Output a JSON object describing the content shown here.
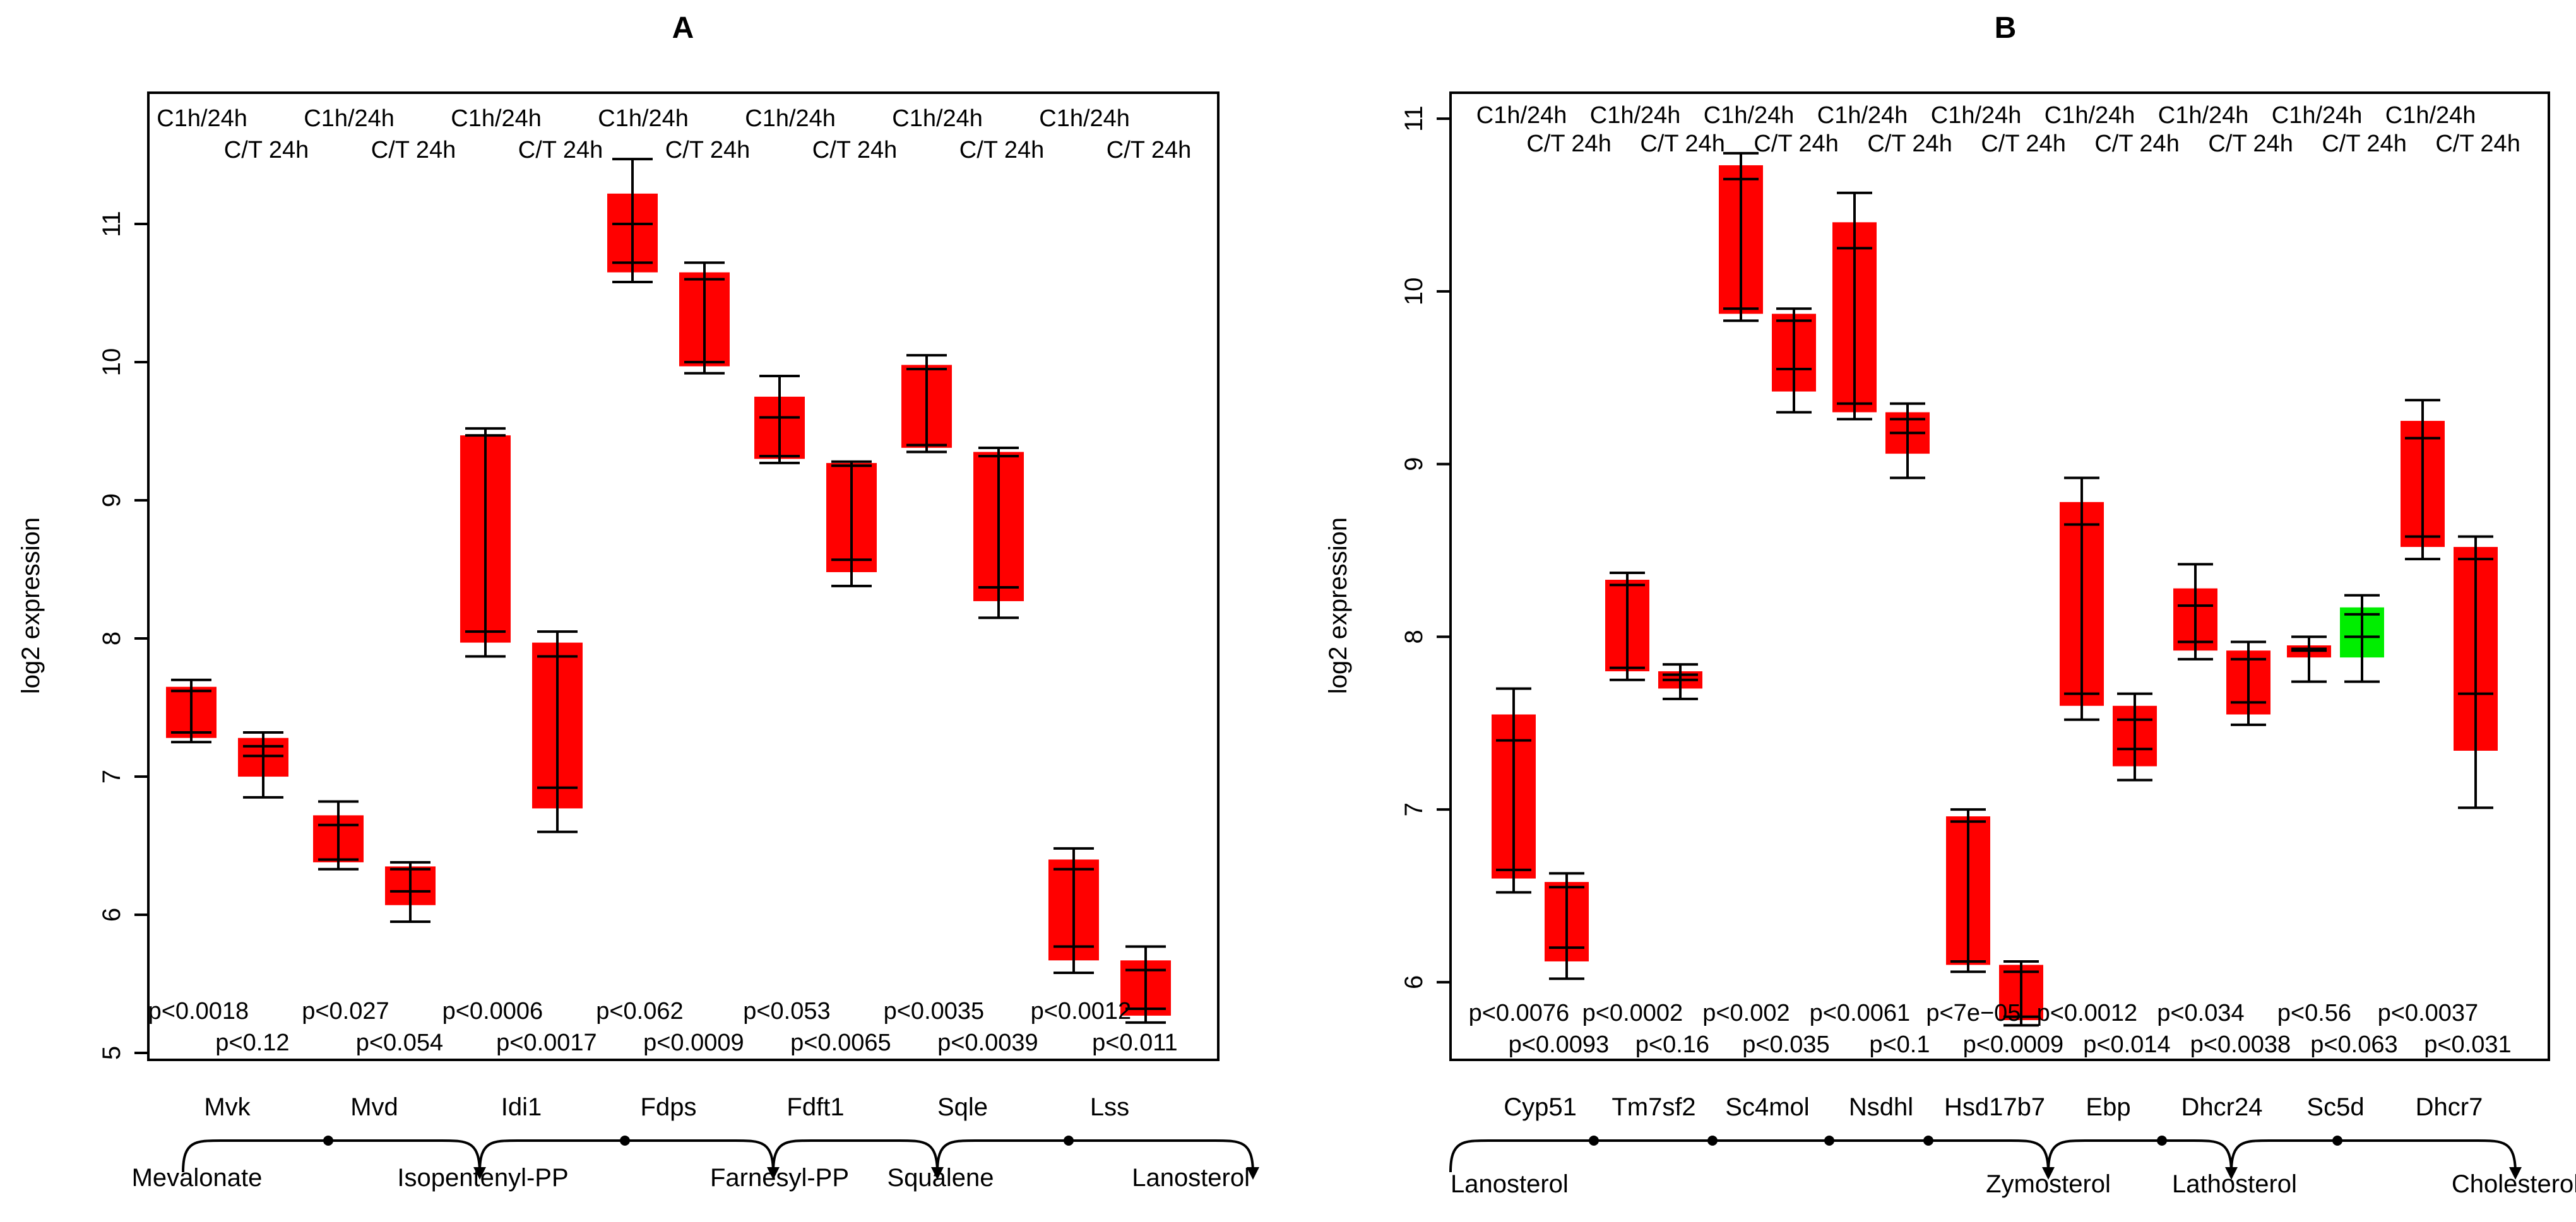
{
  "figure": {
    "panel_labels": [
      "A",
      "B"
    ],
    "ylabel": "log2 expression",
    "colors": {
      "increase": "#ff0000",
      "decrease": "#00ee00",
      "axis": "#000000"
    }
  },
  "chart_data": [
    {
      "type": "box",
      "panel": "A",
      "title": "A",
      "ylabel": "log2 expression",
      "ylim": [
        4.95,
        11.95
      ],
      "yticks": [
        5,
        6,
        7,
        8,
        9,
        10,
        11
      ],
      "group_labels": {
        "first": "C1h/24h",
        "second": "C/T 24h"
      },
      "genes": [
        {
          "gene": "Mvk",
          "p1": "p<0.0018",
          "p2": "p<0.12",
          "boxes": [
            {
              "color": "red",
              "whisker_low": 7.25,
              "q1": 7.28,
              "median": 7.32,
              "q3": 7.65,
              "whisker_high": 7.7,
              "mid": 7.62
            },
            {
              "color": "red",
              "whisker_low": 6.85,
              "q1": 7.0,
              "median": 7.15,
              "q3": 7.28,
              "whisker_high": 7.32,
              "mid": 7.22
            }
          ]
        },
        {
          "gene": "Mvd",
          "p1": "p<0.027",
          "p2": "p<0.054",
          "boxes": [
            {
              "color": "red",
              "whisker_low": 6.33,
              "q1": 6.38,
              "median": 6.4,
              "q3": 6.72,
              "whisker_high": 6.82,
              "mid": 6.65
            },
            {
              "color": "red",
              "whisker_low": 5.95,
              "q1": 6.07,
              "median": 6.17,
              "q3": 6.35,
              "whisker_high": 6.38,
              "mid": 6.33
            }
          ]
        },
        {
          "gene": "Idi1",
          "p1": "p<0.0006",
          "p2": "p<0.0017",
          "boxes": [
            {
              "color": "red",
              "whisker_low": 7.87,
              "q1": 7.97,
              "median": 8.05,
              "q3": 9.47,
              "whisker_high": 9.52,
              "mid": 9.47
            },
            {
              "color": "red",
              "whisker_low": 6.6,
              "q1": 6.77,
              "median": 6.92,
              "q3": 7.97,
              "whisker_high": 8.05,
              "mid": 7.87
            }
          ]
        },
        {
          "gene": "Fdps",
          "p1": "p<0.062",
          "p2": "p<0.0009",
          "boxes": [
            {
              "color": "red",
              "whisker_low": 10.58,
              "q1": 10.65,
              "median": 10.72,
              "q3": 11.22,
              "whisker_high": 11.47,
              "mid": 11.0
            },
            {
              "color": "red",
              "whisker_low": 9.92,
              "q1": 9.97,
              "median": 10.0,
              "q3": 10.65,
              "whisker_high": 10.72,
              "mid": 10.6
            }
          ]
        },
        {
          "gene": "Fdft1",
          "p1": "p<0.053",
          "p2": "p<0.0065",
          "boxes": [
            {
              "color": "red",
              "whisker_low": 9.27,
              "q1": 9.3,
              "median": 9.32,
              "q3": 9.75,
              "whisker_high": 9.9,
              "mid": 9.6
            },
            {
              "color": "red",
              "whisker_low": 8.38,
              "q1": 8.48,
              "median": 8.57,
              "q3": 9.27,
              "whisker_high": 9.28,
              "mid": 9.25
            }
          ]
        },
        {
          "gene": "Sqle",
          "p1": "p<0.0035",
          "p2": "p<0.0039",
          "boxes": [
            {
              "color": "red",
              "whisker_low": 9.35,
              "q1": 9.38,
              "median": 9.4,
              "q3": 9.98,
              "whisker_high": 10.05,
              "mid": 9.95
            },
            {
              "color": "red",
              "whisker_low": 8.15,
              "q1": 8.27,
              "median": 8.37,
              "q3": 9.35,
              "whisker_high": 9.38,
              "mid": 9.32
            }
          ]
        },
        {
          "gene": "Lss",
          "p1": "p<0.0012",
          "p2": "p<0.011",
          "boxes": [
            {
              "color": "red",
              "whisker_low": 5.58,
              "q1": 5.67,
              "median": 5.77,
              "q3": 6.4,
              "whisker_high": 6.48,
              "mid": 6.33
            },
            {
              "color": "red",
              "whisker_low": 5.22,
              "q1": 5.27,
              "median": 5.32,
              "q3": 5.67,
              "whisker_high": 5.77,
              "mid": 5.6
            }
          ]
        }
      ],
      "pathway": {
        "metabolites": [
          "Mevalonate",
          "Isopentenyl-PP",
          "Farnesyl-PP",
          "Squalene",
          "Lanosterol"
        ]
      }
    },
    {
      "type": "box",
      "panel": "B",
      "title": "B",
      "ylabel": "log2 expression",
      "ylim": [
        5.55,
        11.15
      ],
      "yticks": [
        6,
        7,
        8,
        9,
        10,
        11
      ],
      "group_labels": {
        "first": "C1h/24h",
        "second": "C/T 24h"
      },
      "genes": [
        {
          "gene": "Cyp51",
          "p1": "p<0.0076",
          "p2": "p<0.0093",
          "boxes": [
            {
              "color": "red",
              "whisker_low": 6.52,
              "q1": 6.6,
              "median": 6.65,
              "q3": 7.55,
              "whisker_high": 7.7,
              "mid": 7.4
            },
            {
              "color": "red",
              "whisker_low": 6.02,
              "q1": 6.12,
              "median": 6.2,
              "q3": 6.58,
              "whisker_high": 6.63,
              "mid": 6.55
            }
          ]
        },
        {
          "gene": "Tm7sf2",
          "p1": "p<0.0002",
          "p2": "p<0.16",
          "boxes": [
            {
              "color": "red",
              "whisker_low": 7.75,
              "q1": 7.8,
              "median": 7.82,
              "q3": 8.33,
              "whisker_high": 8.37,
              "mid": 8.3
            },
            {
              "color": "red",
              "whisker_low": 7.64,
              "q1": 7.7,
              "median": 7.75,
              "q3": 7.8,
              "whisker_high": 7.84,
              "mid": 7.78
            }
          ]
        },
        {
          "gene": "Sc4mol",
          "p1": "p<0.002",
          "p2": "p<0.035",
          "boxes": [
            {
              "color": "red",
              "whisker_low": 9.83,
              "q1": 9.87,
              "median": 9.9,
              "q3": 10.73,
              "whisker_high": 10.8,
              "mid": 10.65
            },
            {
              "color": "red",
              "whisker_low": 9.3,
              "q1": 9.42,
              "median": 9.55,
              "q3": 9.87,
              "whisker_high": 9.9,
              "mid": 9.83
            }
          ]
        },
        {
          "gene": "Nsdhl",
          "p1": "p<0.0061",
          "p2": "p<0.1",
          "boxes": [
            {
              "color": "red",
              "whisker_low": 9.26,
              "q1": 9.3,
              "median": 9.35,
              "q3": 10.4,
              "whisker_high": 10.57,
              "mid": 10.25
            },
            {
              "color": "red",
              "whisker_low": 8.92,
              "q1": 9.06,
              "median": 9.18,
              "q3": 9.3,
              "whisker_high": 9.35,
              "mid": 9.26
            }
          ]
        },
        {
          "gene": "Hsd17b7",
          "p1": "p<7e−05",
          "p2": "p<0.0009",
          "boxes": [
            {
              "color": "red",
              "whisker_low": 6.06,
              "q1": 6.1,
              "median": 6.12,
              "q3": 6.96,
              "whisker_high": 7.0,
              "mid": 6.93
            },
            {
              "color": "red",
              "whisker_low": 5.75,
              "q1": 5.78,
              "median": 5.8,
              "q3": 6.1,
              "whisker_high": 6.12,
              "mid": 6.06
            }
          ]
        },
        {
          "gene": "Ebp",
          "p1": "p<0.0012",
          "p2": "p<0.014",
          "boxes": [
            {
              "color": "red",
              "whisker_low": 7.52,
              "q1": 7.6,
              "median": 7.67,
              "q3": 8.78,
              "whisker_high": 8.92,
              "mid": 8.65
            },
            {
              "color": "red",
              "whisker_low": 7.17,
              "q1": 7.25,
              "median": 7.35,
              "q3": 7.6,
              "whisker_high": 7.67,
              "mid": 7.52
            }
          ]
        },
        {
          "gene": "Dhcr24",
          "p1": "p<0.034",
          "p2": "p<0.0038",
          "boxes": [
            {
              "color": "red",
              "whisker_low": 7.87,
              "q1": 7.92,
              "median": 7.97,
              "q3": 8.28,
              "whisker_high": 8.42,
              "mid": 8.18
            },
            {
              "color": "red",
              "whisker_low": 7.49,
              "q1": 7.55,
              "median": 7.62,
              "q3": 7.92,
              "whisker_high": 7.97,
              "mid": 7.87
            }
          ]
        },
        {
          "gene": "Sc5d",
          "p1": "p<0.56",
          "p2": "p<0.063",
          "boxes": [
            {
              "color": "red",
              "whisker_low": 7.74,
              "q1": 7.88,
              "median": 7.92,
              "q3": 7.95,
              "whisker_high": 8.0,
              "mid": 7.93
            },
            {
              "color": "green",
              "whisker_low": 7.74,
              "q1": 7.88,
              "median": 8.0,
              "q3": 8.17,
              "whisker_high": 8.24,
              "mid": 8.13
            }
          ]
        },
        {
          "gene": "Dhcr7",
          "p1": "p<0.0037",
          "p2": "p<0.031",
          "boxes": [
            {
              "color": "red",
              "whisker_low": 8.45,
              "q1": 8.52,
              "median": 8.58,
              "q3": 9.25,
              "whisker_high": 9.37,
              "mid": 9.15
            },
            {
              "color": "red",
              "whisker_low": 7.01,
              "q1": 7.34,
              "median": 7.67,
              "q3": 8.52,
              "whisker_high": 8.58,
              "mid": 8.45
            }
          ]
        }
      ],
      "pathway": {
        "metabolites": [
          "Lanosterol",
          "Zymosterol",
          "Lathosterol",
          "Cholesterol"
        ]
      }
    }
  ]
}
